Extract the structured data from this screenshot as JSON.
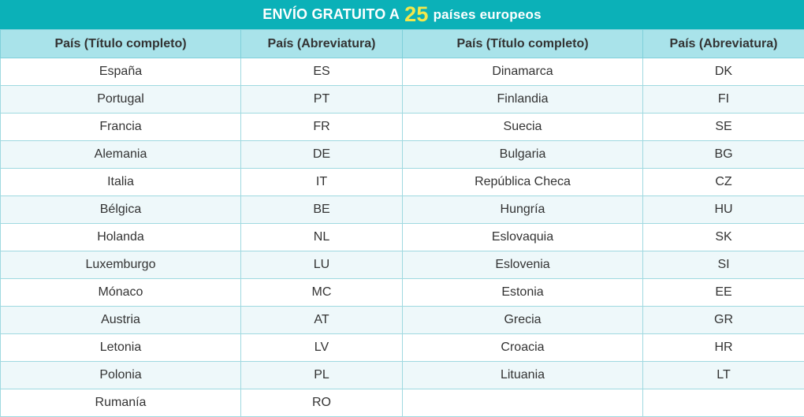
{
  "title": {
    "prefix": "ENVÍO GRATUITO A",
    "number": "25",
    "suffix": "países europeos"
  },
  "headers": [
    "País (Título completo)",
    "País (Abreviatura)",
    "País (Título completo)",
    "País (Abreviatura)"
  ],
  "rows": [
    [
      "España",
      "ES",
      "Dinamarca",
      "DK"
    ],
    [
      "Portugal",
      "PT",
      "Finlandia",
      "FI"
    ],
    [
      "Francia",
      "FR",
      "Suecia",
      "SE"
    ],
    [
      "Alemania",
      "DE",
      "Bulgaria",
      "BG"
    ],
    [
      "Italia",
      "IT",
      "República Checa",
      "CZ"
    ],
    [
      "Bélgica",
      "BE",
      "Hungría",
      "HU"
    ],
    [
      "Holanda",
      "NL",
      "Eslovaquia",
      "SK"
    ],
    [
      "Luxemburgo",
      "LU",
      "Eslovenia",
      "SI"
    ],
    [
      "Mónaco",
      "MC",
      "Estonia",
      "EE"
    ],
    [
      "Austria",
      "AT",
      "Grecia",
      "GR"
    ],
    [
      "Letonia",
      "LV",
      "Croacia",
      "HR"
    ],
    [
      "Polonia",
      "PL",
      "Lituania",
      "LT"
    ],
    [
      "Rumanía",
      "RO",
      "",
      ""
    ]
  ],
  "colors": {
    "title_bg": "#0bb1b8",
    "number": "#f3e84b",
    "header_bg": "#a9e3ea",
    "stripe": "#eef8fa"
  }
}
